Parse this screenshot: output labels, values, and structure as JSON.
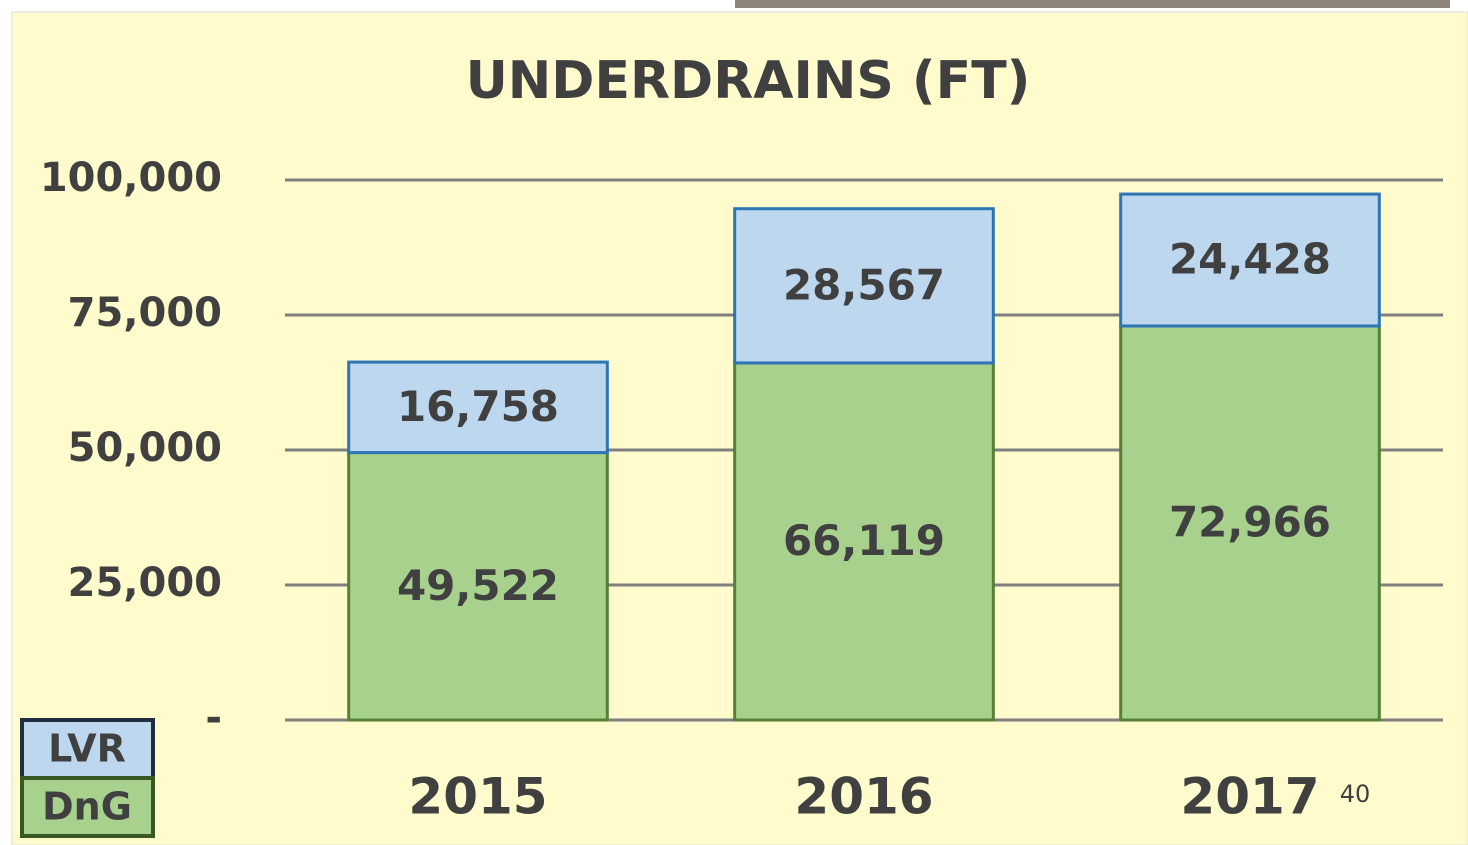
{
  "chart_data": {
    "type": "stacked_bar",
    "title": "UNDERDRAINS (FT)",
    "categories": [
      "2015",
      "2016",
      "2017"
    ],
    "series": [
      {
        "name": "DnG",
        "color": "#a9d18e",
        "border": "#548235",
        "values": [
          49522,
          66119,
          72966
        ],
        "value_labels": [
          "49,522",
          "66,119",
          "72,966"
        ]
      },
      {
        "name": "LVR",
        "color": "#bdd7ee",
        "border": "#2e75b6",
        "values": [
          16758,
          28567,
          24428
        ],
        "value_labels": [
          "16,758",
          "28,567",
          "24,428"
        ]
      }
    ],
    "ylim": [
      0,
      100000
    ],
    "yticks": [
      {
        "value": 0,
        "label": "-"
      },
      {
        "value": 25000,
        "label": "25,000"
      },
      {
        "value": 50000,
        "label": "50,000"
      },
      {
        "value": 75000,
        "label": "75,000"
      },
      {
        "value": 100000,
        "label": "100,000"
      }
    ],
    "grid": true
  },
  "page_number": "40"
}
